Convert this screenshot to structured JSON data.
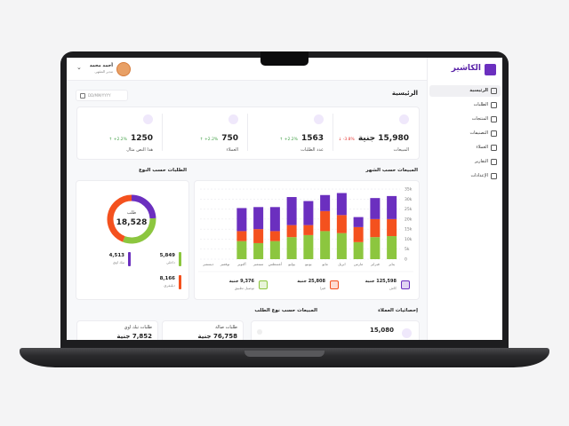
{
  "sidebar": {
    "brand": "الكاشير",
    "menu": [
      "الرئيسية",
      "الطلبات",
      "المنتجات",
      "التصنيفات",
      "العملاء",
      "التقارير",
      "الإعدادات"
    ]
  },
  "topbar": {
    "user_name": "أحمد محمد",
    "user_role": "مدير المقهى"
  },
  "page_title": "الرئيسية",
  "date_placeholder": "DD/MM/YYYY",
  "stats": [
    {
      "label": "المبيعات",
      "value": "15,980 جنية",
      "change": "-3.8%"
    },
    {
      "label": "عدد الطلبات",
      "value": "1563",
      "change": "+2.2%"
    },
    {
      "label": "العملاء",
      "value": "750",
      "change": "+2.2%"
    },
    {
      "label": "هذا النص مثال",
      "value": "1250",
      "change": "+2.2%"
    }
  ],
  "chart_data": [
    {
      "type": "bar",
      "stacked": true,
      "title": "المبيعات حسب الشهر",
      "categories": [
        "يناير",
        "فبراير",
        "مارس",
        "ابريل",
        "مايو",
        "يونيو",
        "يوليو",
        "أغسطس",
        "سبتمبر",
        "أكتوبر",
        "نوفمبر",
        "ديسمبر"
      ],
      "series": [
        {
          "color": "#8cc63f",
          "values": [
            11500,
            11000,
            8500,
            13000,
            14000,
            12000,
            11000,
            9000,
            8000,
            9000,
            null,
            null
          ]
        },
        {
          "color": "#f4511e",
          "values": [
            8500,
            9000,
            7500,
            9000,
            10000,
            5000,
            6000,
            5000,
            7000,
            5000,
            null,
            null
          ]
        },
        {
          "color": "#6b2fbf",
          "values": [
            11500,
            10500,
            5000,
            11000,
            8000,
            12000,
            14000,
            12000,
            11000,
            11500,
            null,
            null
          ]
        }
      ],
      "ylim": [
        0,
        35000
      ],
      "yticks": [
        0,
        {
          "value": 5000,
          "label": "5k"
        },
        {
          "value": 10000,
          "label": "10k"
        },
        {
          "value": 15000,
          "label": "15k"
        },
        {
          "value": 20000,
          "label": "20k"
        },
        {
          "value": 25000,
          "label": "25k"
        },
        {
          "value": 30000,
          "label": "30k"
        },
        {
          "value": 35000,
          "label": "35k"
        }
      ],
      "grid": true
    },
    {
      "type": "pie",
      "title": "الطلبات حسب النوع",
      "center_label": "طلب",
      "center_value": "18,528",
      "categories": [
        "تيك اوي",
        "داخلي",
        "ديليفري"
      ],
      "values": [
        4513,
        5849,
        8166
      ],
      "value_labels": [
        "4,513",
        "5,849",
        "8,166"
      ],
      "colors": [
        "#6b2fbf",
        "#8cc63f",
        "#f4511e"
      ]
    }
  ],
  "sales_summary": [
    {
      "value": "125,598 جنية",
      "label": "كاش"
    },
    {
      "value": "25,808 جنية",
      "label": "فيزا"
    },
    {
      "value": "9,376 جنية",
      "label": "توصيل تطبيق"
    }
  ],
  "customer_stats": {
    "title": "إحصائيات العملاء",
    "value": "15,080"
  },
  "sales_by_type": {
    "title": "المبيعات حسب نوع الطلب",
    "cards": [
      {
        "label": "طلبات صالة",
        "value": "76,758 جنية"
      },
      {
        "label": "طلبات تيك اوي",
        "value": "7,852 جنية"
      }
    ]
  }
}
